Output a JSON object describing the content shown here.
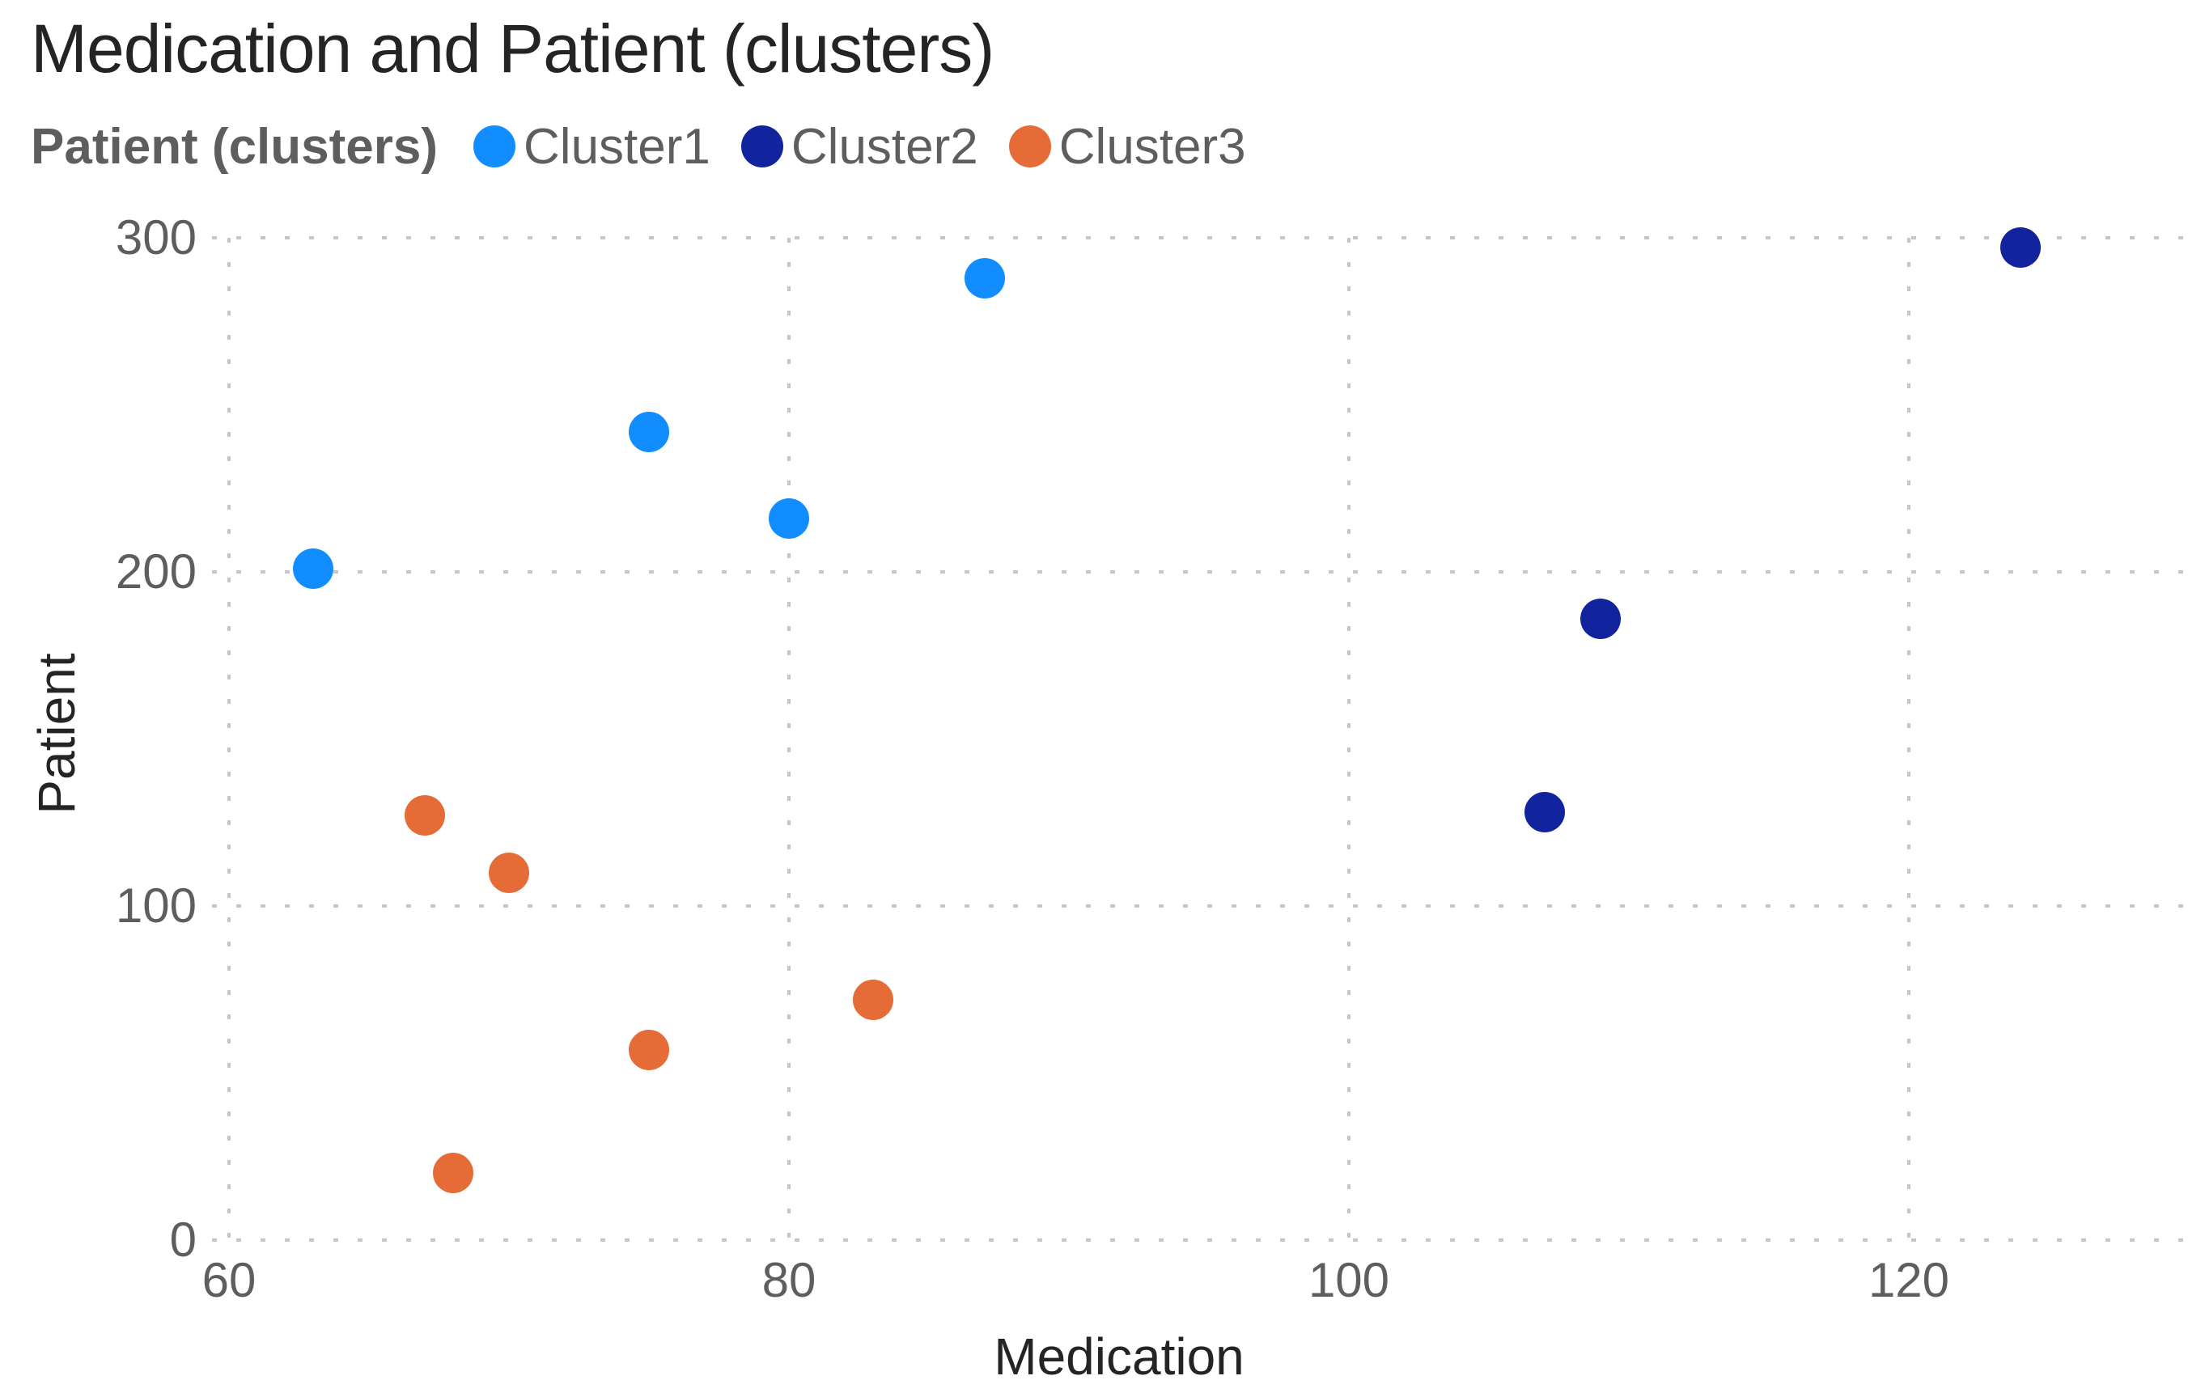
{
  "title": "Medication and Patient (clusters)",
  "legend": {
    "title": "Patient (clusters)",
    "items": [
      {
        "label": "Cluster1",
        "color": "#118DFF"
      },
      {
        "label": "Cluster2",
        "color": "#12239E"
      },
      {
        "label": "Cluster3",
        "color": "#E66C37"
      }
    ]
  },
  "axes": {
    "x": {
      "title": "Medication"
    },
    "y": {
      "title": "Patient"
    }
  },
  "chart_data": {
    "type": "scatter",
    "title": "Medication and Patient (clusters)",
    "xlabel": "Medication",
    "ylabel": "Patient",
    "xlim": [
      60,
      130.5
    ],
    "ylim": [
      0,
      310
    ],
    "x_ticks": [
      60,
      80,
      100,
      120
    ],
    "y_ticks": [
      0,
      100,
      200,
      300
    ],
    "grid": "dotted",
    "legend_position": "top-left",
    "marker_diameter_px": 50,
    "series": [
      {
        "name": "Cluster1",
        "color": "#118DFF",
        "points": [
          {
            "x": 63,
            "y": 201
          },
          {
            "x": 75,
            "y": 242
          },
          {
            "x": 80,
            "y": 216
          },
          {
            "x": 87,
            "y": 288
          }
        ]
      },
      {
        "name": "Cluster2",
        "color": "#12239E",
        "points": [
          {
            "x": 107,
            "y": 128
          },
          {
            "x": 109,
            "y": 186
          },
          {
            "x": 124,
            "y": 297
          }
        ]
      },
      {
        "name": "Cluster3",
        "color": "#E66C37",
        "points": [
          {
            "x": 67,
            "y": 127
          },
          {
            "x": 68,
            "y": 20
          },
          {
            "x": 70,
            "y": 110
          },
          {
            "x": 75,
            "y": 57
          },
          {
            "x": 83,
            "y": 72
          }
        ]
      }
    ]
  },
  "colors": {
    "title_text": "#252423",
    "axis_title_text": "#252423",
    "tick_text": "#605E5C",
    "legend_text": "#605E5C",
    "gridline": "#C8C6C4",
    "background": "#FFFFFF"
  }
}
